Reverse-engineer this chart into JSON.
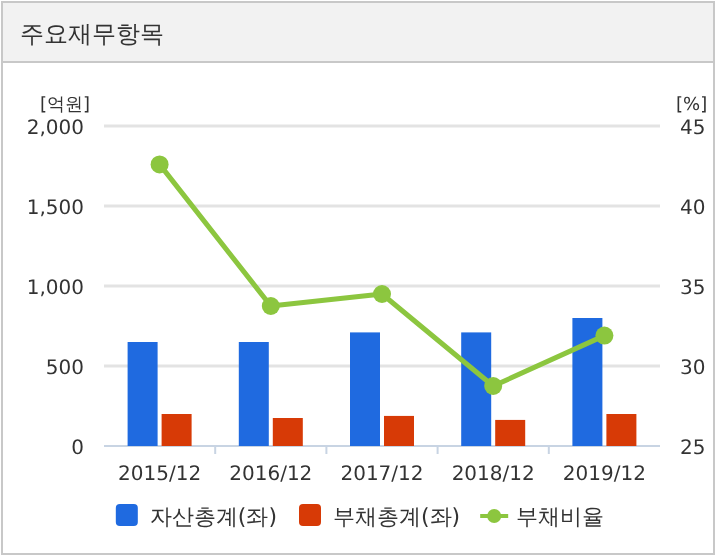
{
  "chart_data": {
    "type": "bar",
    "title": "주요재무항목",
    "ylabel": "[억원]",
    "y2label": "[%]",
    "categories": [
      "2015/12",
      "2016/12",
      "2017/12",
      "2018/12",
      "2019/12"
    ],
    "series": [
      {
        "name": "자산총계(좌)",
        "color": "#1f6ae0",
        "values": [
          650,
          650,
          710,
          710,
          800
        ]
      },
      {
        "name": "부채총계(좌)",
        "color": "#d73a06",
        "values": [
          200,
          175,
          188,
          163,
          200
        ]
      },
      {
        "name": "부채비율",
        "type": "line",
        "axis": "y2",
        "color": "#8cc63f",
        "marker": "circle",
        "values": [
          42.6,
          33.75,
          34.5,
          28.75,
          31.9
        ]
      }
    ],
    "ylim": [
      0,
      2000
    ],
    "yticks": [
      {
        "value": 0,
        "label": "0"
      },
      {
        "value": 500,
        "label": "500"
      },
      {
        "value": 1000,
        "label": "1,000"
      },
      {
        "value": 1500,
        "label": "1,500"
      },
      {
        "value": 2000,
        "label": "2,000"
      }
    ],
    "y2lim": [
      25,
      45
    ],
    "y2ticks": [
      25,
      30,
      35,
      40,
      45
    ],
    "grid": "y",
    "legend": "bottom"
  }
}
